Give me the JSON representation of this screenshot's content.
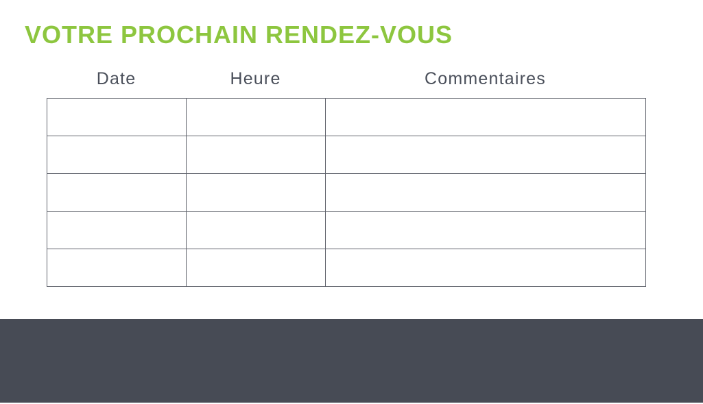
{
  "slide": {
    "title": "VOTRE PROCHAIN RENDEZ-VOUS"
  },
  "colors": {
    "title_green": "#8dc63f",
    "header_text": "#4a4f5a",
    "table_border": "#5f626b",
    "footer_background": "#474b55",
    "page_background": "#ffffff"
  },
  "table": {
    "columns": [
      {
        "label": "Date"
      },
      {
        "label": "Heure"
      },
      {
        "label": "Commentaires"
      }
    ],
    "row_count": 5,
    "rows": [
      [
        "",
        "",
        ""
      ],
      [
        "",
        "",
        ""
      ],
      [
        "",
        "",
        ""
      ],
      [
        "",
        "",
        ""
      ],
      [
        "",
        "",
        ""
      ]
    ]
  },
  "footer": {
    "text": ""
  }
}
